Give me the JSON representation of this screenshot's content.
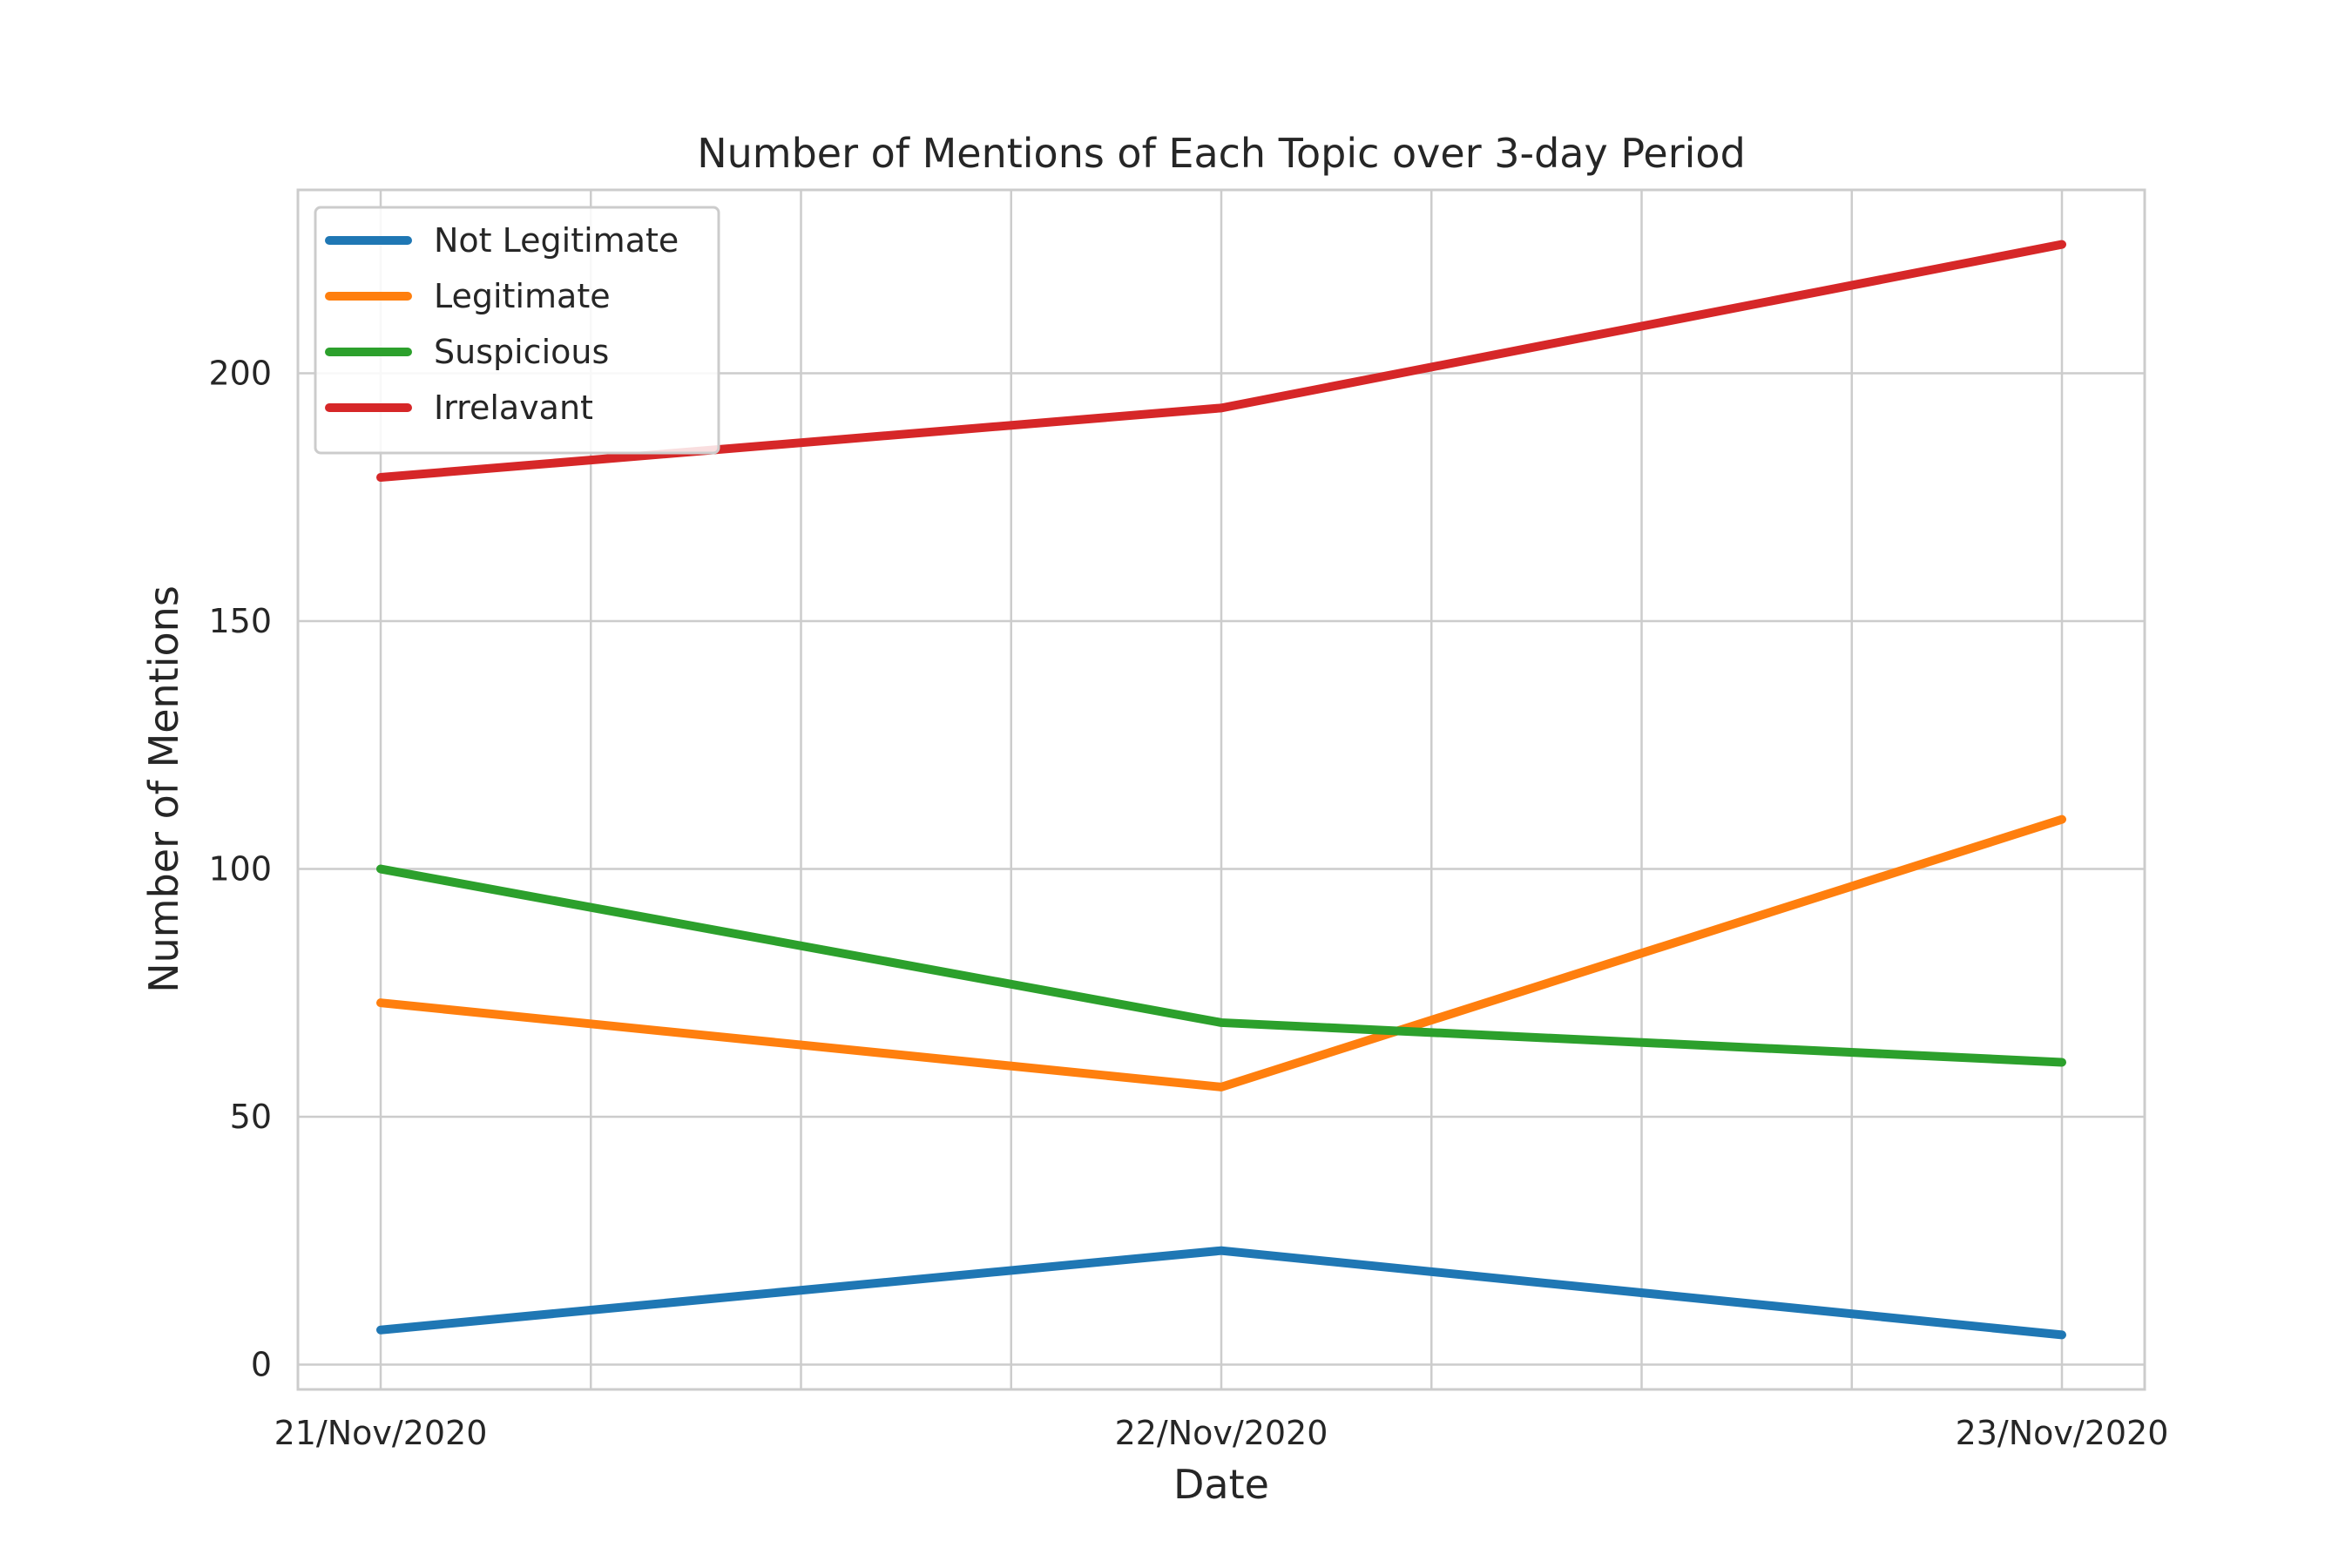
{
  "chart_data": {
    "type": "line",
    "title": "Number of Mentions of Each Topic over 3-day Period",
    "xlabel": "Date",
    "ylabel": "Number of Mentions",
    "categories": [
      "21/Nov/2020",
      "22/Nov/2020",
      "23/Nov/2020"
    ],
    "yticks": [
      0,
      50,
      100,
      150,
      200
    ],
    "ylim": [
      -5,
      237
    ],
    "grid": true,
    "legend_position": "top-left",
    "series": [
      {
        "name": "Not Legitimate",
        "color": "#1f77b4",
        "values": [
          7,
          23,
          6
        ]
      },
      {
        "name": "Legitimate",
        "color": "#ff7f0e",
        "values": [
          73,
          56,
          110
        ]
      },
      {
        "name": "Suspicious",
        "color": "#2ca02c",
        "values": [
          100,
          69,
          61
        ]
      },
      {
        "name": "Irrelavant",
        "color": "#d62728",
        "values": [
          179,
          193,
          226
        ]
      }
    ]
  }
}
